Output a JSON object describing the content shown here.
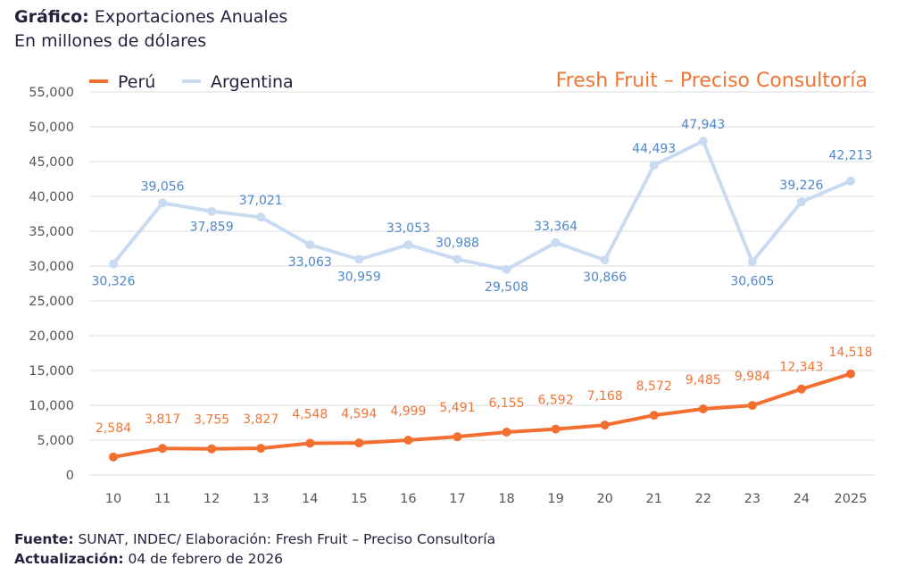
{
  "header": {
    "title_bold": "Gráfico:",
    "title_rest": " Exportaciones Anuales",
    "subtitle": "En millones de dólares",
    "brand": "Fresh Fruit – Preciso Consultoría"
  },
  "footer": {
    "source_label": "Fuente:",
    "source_text": " SUNAT, INDEC/ Elaboración: Fresh Fruit – Preciso Consultoría",
    "update_label": "Actualización:",
    "update_text": " 04 de febrero de 2026"
  },
  "colors": {
    "peru": "#f36f30",
    "peru_label": "#f07535",
    "argentina": "#c9dbf1",
    "argentina_label": "#4f86cc",
    "grid": "#dcdcdc",
    "text": "#23233f"
  },
  "chart_data": {
    "type": "line",
    "title": "Exportaciones Anuales",
    "subtitle": "En millones de dólares",
    "xlabel": "",
    "ylabel": "",
    "categories": [
      "10",
      "11",
      "12",
      "13",
      "14",
      "15",
      "16",
      "17",
      "18",
      "19",
      "20",
      "21",
      "22",
      "23",
      "24",
      "2025"
    ],
    "y_ticks": [
      0,
      5000,
      10000,
      15000,
      20000,
      25000,
      30000,
      35000,
      40000,
      45000,
      50000,
      55000
    ],
    "y_tick_labels": [
      "0",
      "5,000",
      "10,000",
      "15,000",
      "20,000",
      "25,000",
      "30,000",
      "35,000",
      "40,000",
      "45,000",
      "50,000",
      "55,000"
    ],
    "ylim": [
      0,
      55000
    ],
    "grid": true,
    "legend_position": "top-left",
    "series": [
      {
        "name": "Perú",
        "values": [
          2584,
          3817,
          3755,
          3827,
          4548,
          4594,
          4999,
          5491,
          6155,
          6592,
          7168,
          8572,
          9485,
          9984,
          12343,
          14518
        ],
        "labels": [
          "2,584",
          "3,817",
          "3,755",
          "3,827",
          "4,548",
          "4,594",
          "4,999",
          "5,491",
          "6,155",
          "6,592",
          "7,168",
          "8,572",
          "9,485",
          "9,984",
          "12,343",
          "14,518"
        ]
      },
      {
        "name": "Argentina",
        "values": [
          30326,
          39056,
          37859,
          37021,
          33063,
          30959,
          33053,
          30988,
          29508,
          33364,
          30866,
          44493,
          47943,
          30605,
          39226,
          42213
        ],
        "labels": [
          "30,326",
          "39,056",
          "37,859",
          "37,021",
          "33,063",
          "30,959",
          "33,053",
          "30,988",
          "29,508",
          "33,364",
          "30,866",
          "44,493",
          "47,943",
          "30,605",
          "39,226",
          "42,213"
        ]
      }
    ]
  }
}
